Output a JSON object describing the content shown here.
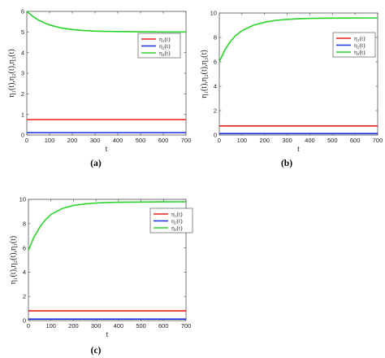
{
  "chart_data": [
    {
      "type": "line",
      "caption": "(a)",
      "xlabel": "t",
      "ylabel": "η₁(t),η₂(t),η₃(t)",
      "xlim": [
        0,
        700
      ],
      "ylim": [
        0,
        6
      ],
      "xticks": [
        0,
        100,
        200,
        300,
        400,
        500,
        600,
        700
      ],
      "yticks": [
        0,
        1,
        2,
        3,
        4,
        5,
        6
      ],
      "grid": false,
      "legend_position": "middle-right",
      "series": [
        {
          "name": "η₁(t)",
          "color": "#e8201e",
          "x": [
            0,
            700
          ],
          "y": [
            0.75,
            0.75
          ]
        },
        {
          "name": "η₂(t)",
          "color": "#1a2ee0",
          "x": [
            0,
            700
          ],
          "y": [
            0.12,
            0.12
          ]
        },
        {
          "name": "η₃(t)",
          "color": "#2bd42b",
          "x": [
            0,
            25,
            50,
            75,
            100,
            150,
            200,
            250,
            300,
            350,
            400,
            500,
            600,
            700
          ],
          "y": [
            6.0,
            5.77,
            5.59,
            5.45,
            5.34,
            5.2,
            5.12,
            5.07,
            5.04,
            5.03,
            5.02,
            5.01,
            5.0,
            5.0
          ]
        }
      ]
    },
    {
      "type": "line",
      "caption": "(b)",
      "xlabel": "t",
      "ylabel": "η₁(t),η₂(t),η₃(t)",
      "xlim": [
        0,
        700
      ],
      "ylim": [
        0,
        10
      ],
      "xticks": [
        0,
        100,
        200,
        300,
        400,
        500,
        600,
        700
      ],
      "yticks": [
        0,
        2,
        4,
        6,
        8,
        10
      ],
      "grid": false,
      "legend_position": "upper-right",
      "series": [
        {
          "name": "η₁(t)",
          "color": "#e8201e",
          "x": [
            0,
            700
          ],
          "y": [
            0.75,
            0.75
          ]
        },
        {
          "name": "η₂(t)",
          "color": "#1a2ee0",
          "x": [
            0,
            700
          ],
          "y": [
            0.12,
            0.12
          ]
        },
        {
          "name": "η₃(t)",
          "color": "#2bd42b",
          "x": [
            0,
            25,
            50,
            75,
            100,
            150,
            200,
            250,
            300,
            350,
            400,
            500,
            600,
            700
          ],
          "y": [
            6.0,
            7.0,
            7.7,
            8.2,
            8.55,
            9.0,
            9.25,
            9.4,
            9.48,
            9.53,
            9.56,
            9.58,
            9.59,
            9.6
          ]
        }
      ]
    },
    {
      "type": "line",
      "caption": "(c)",
      "xlabel": "t",
      "ylabel": "η₁(t),η₂(t),η₃(t)",
      "xlim": [
        0,
        700
      ],
      "ylim": [
        0,
        10
      ],
      "xticks": [
        0,
        100,
        200,
        300,
        400,
        500,
        600,
        700
      ],
      "yticks": [
        0,
        2,
        4,
        6,
        8,
        10
      ],
      "grid": false,
      "legend_position": "upper-right",
      "series": [
        {
          "name": "η₁(t)",
          "color": "#e8201e",
          "x": [
            0,
            700
          ],
          "y": [
            0.8,
            0.8
          ]
        },
        {
          "name": "η₂(t)",
          "color": "#1a2ee0",
          "x": [
            0,
            700
          ],
          "y": [
            0.12,
            0.12
          ]
        },
        {
          "name": "η₃(t)",
          "color": "#2bd42b",
          "x": [
            0,
            25,
            50,
            75,
            100,
            150,
            200,
            250,
            300,
            350,
            400,
            500,
            600,
            700
          ],
          "y": [
            5.8,
            6.9,
            7.7,
            8.3,
            8.75,
            9.25,
            9.5,
            9.62,
            9.7,
            9.74,
            9.76,
            9.78,
            9.79,
            9.8
          ]
        }
      ]
    }
  ]
}
